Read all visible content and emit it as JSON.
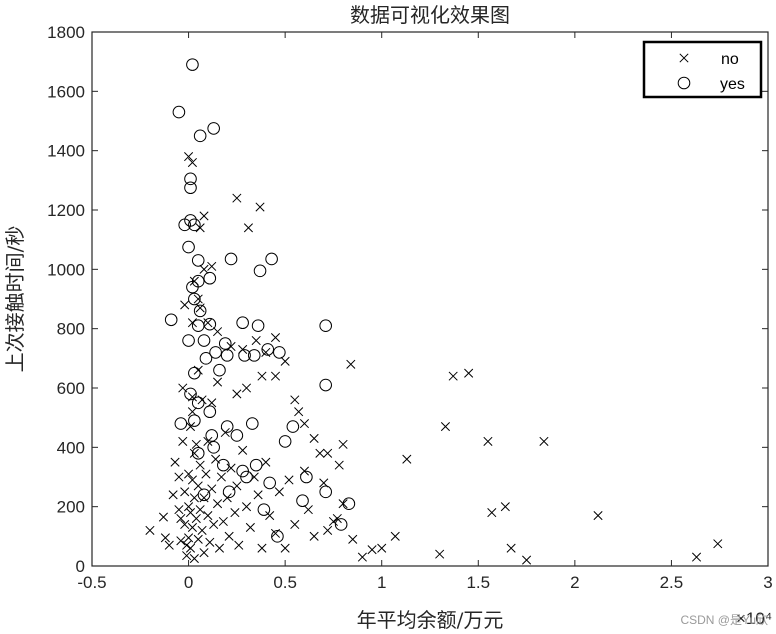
{
  "watermark": "CSDN @是Yu欣",
  "chart_data": {
    "type": "scatter",
    "title": "数据可视化效果图",
    "xlabel": "年平均余额/万元",
    "ylabel": "上次接触时间/秒",
    "x_exponent_label": "×10⁴",
    "xlim": [
      -0.5,
      3
    ],
    "ylim": [
      0,
      1800
    ],
    "x_ticks": [
      "-0.5",
      "0",
      "0.5",
      "1",
      "1.5",
      "2",
      "2.5",
      "3"
    ],
    "y_ticks": [
      "0",
      "200",
      "400",
      "600",
      "800",
      "1000",
      "1200",
      "1400",
      "1600",
      "1800"
    ],
    "grid": false,
    "legend_position": "top-right",
    "series": [
      {
        "name": "no",
        "marker": "x",
        "color": "#000000",
        "points": [
          [
            -0.2,
            120
          ],
          [
            -0.13,
            165
          ],
          [
            -0.12,
            95
          ],
          [
            -0.1,
            70
          ],
          [
            -0.08,
            240
          ],
          [
            -0.07,
            350
          ],
          [
            -0.05,
            300
          ],
          [
            -0.05,
            190
          ],
          [
            -0.04,
            160
          ],
          [
            -0.04,
            85
          ],
          [
            -0.03,
            420
          ],
          [
            -0.02,
            250
          ],
          [
            -0.02,
            140
          ],
          [
            -0.01,
            70
          ],
          [
            -0.01,
            35
          ],
          [
            0.0,
            200
          ],
          [
            0.0,
            310
          ],
          [
            0.0,
            95
          ],
          [
            0.01,
            180
          ],
          [
            0.01,
            470
          ],
          [
            0.01,
            60
          ],
          [
            0.02,
            520
          ],
          [
            0.02,
            290
          ],
          [
            0.02,
            130
          ],
          [
            0.03,
            230
          ],
          [
            0.03,
            380
          ],
          [
            0.03,
            25
          ],
          [
            0.04,
            160
          ],
          [
            0.04,
            410
          ],
          [
            0.05,
            270
          ],
          [
            0.05,
            90
          ],
          [
            0.06,
            340
          ],
          [
            0.06,
            190
          ],
          [
            0.07,
            560
          ],
          [
            0.07,
            120
          ],
          [
            0.08,
            230
          ],
          [
            0.08,
            45
          ],
          [
            0.09,
            310
          ],
          [
            0.1,
            170
          ],
          [
            0.1,
            420
          ],
          [
            0.11,
            80
          ],
          [
            0.12,
            260
          ],
          [
            0.13,
            140
          ],
          [
            0.14,
            360
          ],
          [
            0.15,
            210
          ],
          [
            0.16,
            60
          ],
          [
            0.17,
            300
          ],
          [
            0.18,
            150
          ],
          [
            0.19,
            450
          ],
          [
            0.2,
            230
          ],
          [
            0.21,
            100
          ],
          [
            0.22,
            330
          ],
          [
            0.24,
            180
          ],
          [
            0.25,
            270
          ],
          [
            0.26,
            70
          ],
          [
            0.28,
            390
          ],
          [
            0.3,
            200
          ],
          [
            0.32,
            130
          ],
          [
            0.34,
            300
          ],
          [
            0.36,
            240
          ],
          [
            0.38,
            60
          ],
          [
            0.4,
            350
          ],
          [
            0.42,
            170
          ],
          [
            0.45,
            110
          ],
          [
            0.47,
            250
          ],
          [
            0.5,
            60
          ],
          [
            0.52,
            290
          ],
          [
            0.55,
            140
          ],
          [
            0.6,
            320
          ],
          [
            0.62,
            190
          ],
          [
            0.65,
            100
          ],
          [
            0.7,
            280
          ],
          [
            0.75,
            150
          ],
          [
            0.8,
            210
          ],
          [
            0.85,
            90
          ],
          [
            0.0,
            1380
          ],
          [
            0.02,
            1360
          ],
          [
            0.08,
            1180
          ],
          [
            0.06,
            1140
          ],
          [
            0.25,
            1240
          ],
          [
            0.37,
            1210
          ],
          [
            0.31,
            1140
          ],
          [
            0.12,
            1010
          ],
          [
            0.08,
            1000
          ],
          [
            0.03,
            960
          ],
          [
            0.05,
            900
          ],
          [
            0.06,
            870
          ],
          [
            -0.02,
            880
          ],
          [
            0.02,
            820
          ],
          [
            0.1,
            820
          ],
          [
            0.15,
            790
          ],
          [
            0.22,
            740
          ],
          [
            0.28,
            730
          ],
          [
            0.35,
            760
          ],
          [
            0.4,
            720
          ],
          [
            0.45,
            770
          ],
          [
            0.5,
            690
          ],
          [
            0.55,
            560
          ],
          [
            0.57,
            520
          ],
          [
            0.6,
            480
          ],
          [
            0.65,
            430
          ],
          [
            0.68,
            380
          ],
          [
            0.72,
            380
          ],
          [
            0.78,
            340
          ],
          [
            0.8,
            410
          ],
          [
            0.84,
            680
          ],
          [
            0.38,
            640
          ],
          [
            0.45,
            640
          ],
          [
            0.3,
            600
          ],
          [
            0.25,
            580
          ],
          [
            0.15,
            620
          ],
          [
            0.05,
            660
          ],
          [
            -0.03,
            600
          ],
          [
            0.02,
            570
          ],
          [
            0.12,
            550
          ],
          [
            1.37,
            640
          ],
          [
            1.45,
            650
          ],
          [
            1.33,
            470
          ],
          [
            1.55,
            420
          ],
          [
            1.84,
            420
          ],
          [
            1.13,
            360
          ],
          [
            1.57,
            180
          ],
          [
            1.64,
            200
          ],
          [
            2.12,
            170
          ],
          [
            1.07,
            100
          ],
          [
            0.9,
            30
          ],
          [
            0.95,
            55
          ],
          [
            1.0,
            60
          ],
          [
            1.3,
            40
          ],
          [
            1.67,
            60
          ],
          [
            1.75,
            20
          ],
          [
            2.63,
            30
          ],
          [
            2.74,
            75
          ],
          [
            0.72,
            120
          ],
          [
            0.77,
            160
          ]
        ]
      },
      {
        "name": "yes",
        "marker": "o",
        "color": "#000000",
        "points": [
          [
            0.02,
            1690
          ],
          [
            -0.05,
            1530
          ],
          [
            0.13,
            1475
          ],
          [
            0.06,
            1450
          ],
          [
            0.01,
            1305
          ],
          [
            0.01,
            1275
          ],
          [
            -0.02,
            1150
          ],
          [
            0.01,
            1165
          ],
          [
            0.03,
            1150
          ],
          [
            0.0,
            1075
          ],
          [
            0.05,
            1030
          ],
          [
            0.22,
            1035
          ],
          [
            0.43,
            1035
          ],
          [
            0.37,
            995
          ],
          [
            0.11,
            970
          ],
          [
            0.05,
            960
          ],
          [
            0.02,
            940
          ],
          [
            0.03,
            900
          ],
          [
            0.06,
            860
          ],
          [
            -0.09,
            830
          ],
          [
            0.05,
            810
          ],
          [
            0.11,
            815
          ],
          [
            0.28,
            820
          ],
          [
            0.36,
            810
          ],
          [
            0.71,
            810
          ],
          [
            0.0,
            760
          ],
          [
            0.08,
            760
          ],
          [
            0.19,
            750
          ],
          [
            0.29,
            710
          ],
          [
            0.34,
            710
          ],
          [
            0.41,
            730
          ],
          [
            0.47,
            720
          ],
          [
            0.09,
            700
          ],
          [
            0.14,
            720
          ],
          [
            0.2,
            710
          ],
          [
            0.03,
            650
          ],
          [
            0.16,
            660
          ],
          [
            0.01,
            580
          ],
          [
            0.05,
            550
          ],
          [
            0.71,
            610
          ],
          [
            0.11,
            520
          ],
          [
            0.03,
            490
          ],
          [
            -0.04,
            480
          ],
          [
            0.12,
            440
          ],
          [
            0.2,
            470
          ],
          [
            0.25,
            440
          ],
          [
            0.33,
            480
          ],
          [
            0.54,
            470
          ],
          [
            0.5,
            420
          ],
          [
            0.13,
            400
          ],
          [
            0.05,
            380
          ],
          [
            0.18,
            340
          ],
          [
            0.28,
            320
          ],
          [
            0.3,
            300
          ],
          [
            0.35,
            340
          ],
          [
            0.42,
            280
          ],
          [
            0.59,
            220
          ],
          [
            0.61,
            300
          ],
          [
            0.71,
            250
          ],
          [
            0.83,
            210
          ],
          [
            0.79,
            140
          ],
          [
            0.46,
            100
          ],
          [
            0.21,
            250
          ],
          [
            0.08,
            240
          ],
          [
            0.39,
            190
          ]
        ]
      }
    ]
  }
}
